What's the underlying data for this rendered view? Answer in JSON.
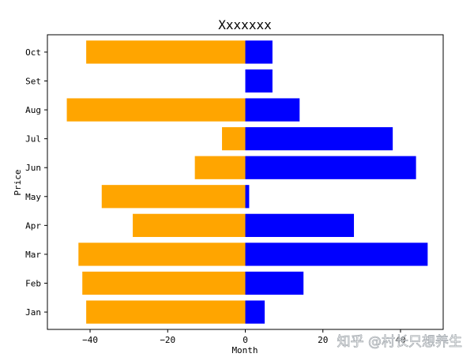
{
  "chart_data": {
    "type": "bar",
    "orientation": "horizontal",
    "title": "Xxxxxxx",
    "xlabel": "Month",
    "ylabel": "Price",
    "categories": [
      "Jan",
      "Feb",
      "Mar",
      "Apr",
      "May",
      "Jun",
      "Jul",
      "Aug",
      "Set",
      "Oct"
    ],
    "series": [
      {
        "color": "#ffa500",
        "values": [
          -41,
          -42,
          -43,
          -29,
          -37,
          -13,
          -6,
          -46,
          0,
          -41
        ]
      },
      {
        "color": "#0000ff",
        "values": [
          5,
          15,
          47,
          28,
          1,
          44,
          38,
          14,
          7,
          7
        ]
      }
    ],
    "xlim": [
      -51,
      51
    ],
    "xticks": [
      -40,
      -20,
      0,
      20,
      40
    ],
    "xtick_labels": [
      "−40",
      "−20",
      "0",
      "20",
      "40"
    ],
    "grid": false
  },
  "watermark": "知乎 @村长只想养生"
}
